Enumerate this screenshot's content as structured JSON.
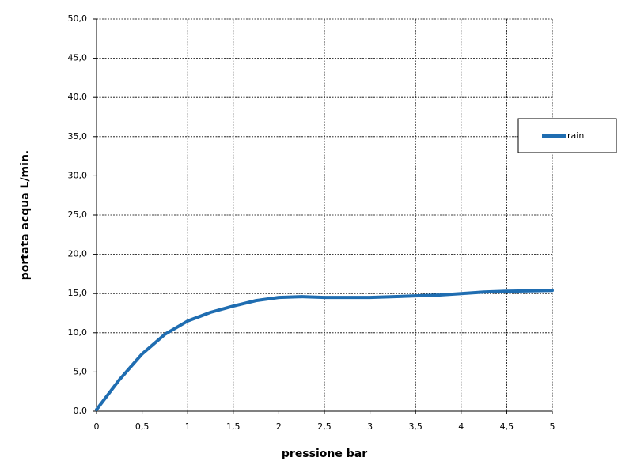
{
  "chart_data": {
    "type": "line",
    "x_label": "pressione bar",
    "y_label": "portata acqua  L/min.",
    "x": [
      0,
      0.25,
      0.5,
      0.75,
      1,
      1.25,
      1.5,
      1.75,
      2,
      2.25,
      2.5,
      3,
      3.5,
      3.75,
      4,
      4.25,
      4.5,
      5
    ],
    "series": [
      {
        "name": "rain",
        "color": "#1f6db1",
        "values": [
          0.2,
          4,
          7.3,
          9.8,
          11.5,
          12.6,
          13.4,
          14.1,
          14.5,
          14.6,
          14.5,
          14.5,
          14.7,
          14.8,
          15.0,
          15.2,
          15.3,
          15.4
        ]
      }
    ],
    "xlim": [
      0,
      5
    ],
    "ylim": [
      0,
      50
    ],
    "xticks": [
      0,
      {
        "value": 0.5,
        "label": "0,5"
      },
      1,
      {
        "value": 1.5,
        "label": "1,5"
      },
      2,
      {
        "value": 2.5,
        "label": "2,5"
      },
      3,
      {
        "value": 3.5,
        "label": "3,5"
      },
      4,
      {
        "value": 4.5,
        "label": "4,5"
      },
      5
    ],
    "yticks": [
      {
        "value": 0,
        "label": "0,0"
      },
      {
        "value": 5,
        "label": "5,0"
      },
      {
        "value": 10,
        "label": "10,0"
      },
      {
        "value": 15,
        "label": "15,0"
      },
      {
        "value": 20,
        "label": "20,0"
      },
      {
        "value": 25,
        "label": "25,0"
      },
      {
        "value": 30,
        "label": "30,0"
      },
      {
        "value": 35,
        "label": "35,0"
      },
      {
        "value": 40,
        "label": "40,0"
      },
      {
        "value": 45,
        "label": "45,0"
      },
      {
        "value": 50,
        "label": "50,0"
      }
    ],
    "grid": true,
    "legend": "right"
  }
}
